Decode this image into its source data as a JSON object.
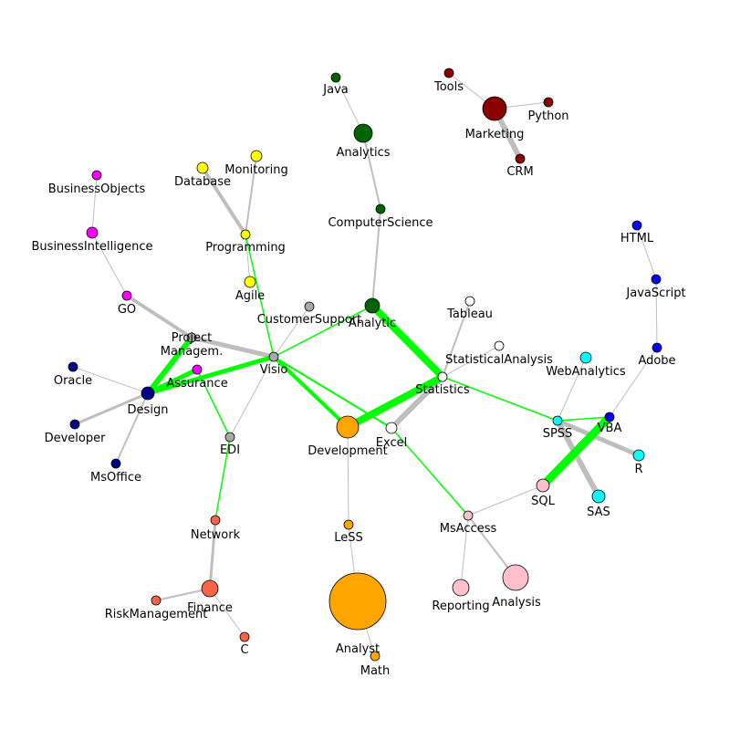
{
  "graph": {
    "colors": {
      "gray_edge": "#bebebe",
      "green_edge": "#00ff00",
      "node_stroke": "#000000"
    },
    "groups": {
      "maroon": "#8b0000",
      "darkgreen": "#006400",
      "yellow": "#ffff00",
      "magenta": "#ff00ff",
      "navy": "#00008b",
      "gray": "#a9a9a9",
      "orange": "#ffa500",
      "white": "#ffffff",
      "pink": "#ffc0cb",
      "cyan": "#00ffff",
      "blue": "#0000ff",
      "tomato": "#ff6347"
    },
    "nodes": [
      {
        "id": "Java",
        "label": "Java",
        "group": "darkgreen",
        "weight": 1
      },
      {
        "id": "Analytics",
        "label": "Analytics",
        "group": "darkgreen",
        "weight": 3
      },
      {
        "id": "ComputerScience",
        "label": "ComputerScience",
        "group": "darkgreen",
        "weight": 1
      },
      {
        "id": "Analytic",
        "label": "Analytic",
        "group": "darkgreen",
        "weight": 2
      },
      {
        "id": "Tools",
        "label": "Tools",
        "group": "maroon",
        "weight": 1
      },
      {
        "id": "Marketing",
        "label": "Marketing",
        "group": "maroon",
        "weight": 6
      },
      {
        "id": "Python",
        "label": "Python",
        "group": "maroon",
        "weight": 1
      },
      {
        "id": "CRM",
        "label": "CRM",
        "group": "maroon",
        "weight": 1
      },
      {
        "id": "Monitoring",
        "label": "Monitoring",
        "group": "yellow",
        "weight": 1.2
      },
      {
        "id": "Database",
        "label": "Database",
        "group": "yellow",
        "weight": 1.2
      },
      {
        "id": "Programming",
        "label": "Programming",
        "group": "yellow",
        "weight": 1
      },
      {
        "id": "Agile",
        "label": "Agile",
        "group": "yellow",
        "weight": 1.2
      },
      {
        "id": "BusinessObjects",
        "label": "BusinessObjects",
        "group": "magenta",
        "weight": 1
      },
      {
        "id": "BusinessIntelligence",
        "label": "BusinessIntelligence",
        "group": "magenta",
        "weight": 1.2
      },
      {
        "id": "GO",
        "label": "GO",
        "group": "magenta",
        "weight": 1
      },
      {
        "id": "Assurance",
        "label": "Assurance",
        "group": "magenta",
        "weight": 1
      },
      {
        "id": "CustomerSupport",
        "label": "CustomerSupport",
        "group": "gray",
        "weight": 1
      },
      {
        "id": "ProjectManagem",
        "label": "Project\nManagem.",
        "group": "gray",
        "weight": 1
      },
      {
        "id": "Visio",
        "label": "Visio",
        "group": "gray",
        "weight": 1
      },
      {
        "id": "EDI",
        "label": "EDI",
        "group": "gray",
        "weight": 1
      },
      {
        "id": "Oracle",
        "label": "Oracle",
        "group": "navy",
        "weight": 1
      },
      {
        "id": "Design",
        "label": "Design",
        "group": "navy",
        "weight": 2
      },
      {
        "id": "Developer",
        "label": "Developer",
        "group": "navy",
        "weight": 1
      },
      {
        "id": "MsOffice",
        "label": "MsOffice",
        "group": "navy",
        "weight": 1
      },
      {
        "id": "Tableau",
        "label": "Tableau",
        "group": "white",
        "weight": 1
      },
      {
        "id": "StatisticalAnalysis",
        "label": "StatisticalAnalysis",
        "group": "white",
        "weight": 1
      },
      {
        "id": "Statistics",
        "label": "Statistics",
        "group": "white",
        "weight": 1
      },
      {
        "id": "Excel",
        "label": "Excel",
        "group": "white",
        "weight": 1.5
      },
      {
        "id": "Development",
        "label": "Development",
        "group": "orange",
        "weight": 5
      },
      {
        "id": "LeSS",
        "label": "LeSS",
        "group": "orange",
        "weight": 1
      },
      {
        "id": "Analyst",
        "label": "Analyst",
        "group": "orange",
        "weight": 100
      },
      {
        "id": "Math",
        "label": "Math",
        "group": "orange",
        "weight": 1
      },
      {
        "id": "WebAnalytics",
        "label": "WebAnalytics",
        "group": "cyan",
        "weight": 1.2
      },
      {
        "id": "SPSS",
        "label": "SPSS",
        "group": "cyan",
        "weight": 1
      },
      {
        "id": "R",
        "label": "R",
        "group": "cyan",
        "weight": 1.2
      },
      {
        "id": "SAS",
        "label": "SAS",
        "group": "cyan",
        "weight": 2
      },
      {
        "id": "HTML",
        "label": "HTML",
        "group": "blue",
        "weight": 1
      },
      {
        "id": "JavaScript",
        "label": "JavaScript",
        "group": "blue",
        "weight": 1
      },
      {
        "id": "Adobe",
        "label": "Adobe",
        "group": "blue",
        "weight": 1
      },
      {
        "id": "VBA",
        "label": "VBA",
        "group": "blue",
        "weight": 1
      },
      {
        "id": "SQL",
        "label": "SQL",
        "group": "pink",
        "weight": 2
      },
      {
        "id": "MsAccess",
        "label": "MsAccess",
        "group": "pink",
        "weight": 1
      },
      {
        "id": "Reporting",
        "label": "Reporting",
        "group": "pink",
        "weight": 3
      },
      {
        "id": "Analysis",
        "label": "Analysis",
        "group": "pink",
        "weight": 7
      },
      {
        "id": "Network",
        "label": "Network",
        "group": "tomato",
        "weight": 1
      },
      {
        "id": "Finance",
        "label": "Finance",
        "group": "tomato",
        "weight": 3
      },
      {
        "id": "RiskManagement",
        "label": "RiskManagement",
        "group": "tomato",
        "weight": 1
      },
      {
        "id": "C",
        "label": "C",
        "group": "tomato",
        "weight": 1
      }
    ],
    "edges": [
      {
        "source": "Java",
        "target": "Analytics",
        "type": "gray",
        "weight": 1
      },
      {
        "source": "Analytics",
        "target": "ComputerScience",
        "type": "gray",
        "weight": 2
      },
      {
        "source": "ComputerScience",
        "target": "Analytic",
        "type": "gray",
        "weight": 2
      },
      {
        "source": "Tools",
        "target": "Marketing",
        "type": "gray",
        "weight": 1
      },
      {
        "source": "Marketing",
        "target": "Python",
        "type": "gray",
        "weight": 1
      },
      {
        "source": "Marketing",
        "target": "CRM",
        "type": "gray",
        "weight": 6
      },
      {
        "source": "Monitoring",
        "target": "Programming",
        "type": "gray",
        "weight": 2
      },
      {
        "source": "Database",
        "target": "Programming",
        "type": "gray",
        "weight": 4
      },
      {
        "source": "Programming",
        "target": "Agile",
        "type": "gray",
        "weight": 1
      },
      {
        "source": "BusinessObjects",
        "target": "BusinessIntelligence",
        "type": "gray",
        "weight": 1
      },
      {
        "source": "BusinessIntelligence",
        "target": "GO",
        "type": "gray",
        "weight": 1
      },
      {
        "source": "GO",
        "target": "ProjectManagem",
        "type": "gray",
        "weight": 4
      },
      {
        "source": "ProjectManagem",
        "target": "Visio",
        "type": "gray",
        "weight": 5
      },
      {
        "source": "CustomerSupport",
        "target": "Visio",
        "type": "gray",
        "weight": 1
      },
      {
        "source": "Visio",
        "target": "EDI",
        "type": "gray",
        "weight": 1
      },
      {
        "source": "Oracle",
        "target": "Design",
        "type": "gray",
        "weight": 1
      },
      {
        "source": "Design",
        "target": "Developer",
        "type": "gray",
        "weight": 3
      },
      {
        "source": "Design",
        "target": "MsOffice",
        "type": "gray",
        "weight": 2
      },
      {
        "source": "Tableau",
        "target": "Statistics",
        "type": "gray",
        "weight": 2
      },
      {
        "source": "StatisticalAnalysis",
        "target": "Statistics",
        "type": "gray",
        "weight": 1
      },
      {
        "source": "Statistics",
        "target": "Excel",
        "type": "gray",
        "weight": 6
      },
      {
        "source": "Development",
        "target": "LeSS",
        "type": "gray",
        "weight": 1
      },
      {
        "source": "LeSS",
        "target": "Analyst",
        "type": "gray",
        "weight": 1
      },
      {
        "source": "Analyst",
        "target": "Math",
        "type": "gray",
        "weight": 1
      },
      {
        "source": "WebAnalytics",
        "target": "SPSS",
        "type": "gray",
        "weight": 1
      },
      {
        "source": "SPSS",
        "target": "R",
        "type": "gray",
        "weight": 5
      },
      {
        "source": "SPSS",
        "target": "SAS",
        "type": "gray",
        "weight": 6
      },
      {
        "source": "HTML",
        "target": "JavaScript",
        "type": "gray",
        "weight": 1
      },
      {
        "source": "JavaScript",
        "target": "Adobe",
        "type": "gray",
        "weight": 1
      },
      {
        "source": "Adobe",
        "target": "VBA",
        "type": "gray",
        "weight": 1
      },
      {
        "source": "SQL",
        "target": "MsAccess",
        "type": "gray",
        "weight": 1
      },
      {
        "source": "MsAccess",
        "target": "Reporting",
        "type": "gray",
        "weight": 1
      },
      {
        "source": "MsAccess",
        "target": "Analysis",
        "type": "gray",
        "weight": 2
      },
      {
        "source": "Network",
        "target": "Finance",
        "type": "gray",
        "weight": 3
      },
      {
        "source": "Finance",
        "target": "RiskManagement",
        "type": "gray",
        "weight": 2
      },
      {
        "source": "Finance",
        "target": "C",
        "type": "gray",
        "weight": 1
      },
      {
        "source": "Programming",
        "target": "Visio",
        "type": "green",
        "weight": 1.5
      },
      {
        "source": "Visio",
        "target": "Analytic",
        "type": "green",
        "weight": 1.5
      },
      {
        "source": "Visio",
        "target": "Development",
        "type": "green",
        "weight": 4
      },
      {
        "source": "Visio",
        "target": "Excel",
        "type": "green",
        "weight": 2
      },
      {
        "source": "Visio",
        "target": "Design",
        "type": "green",
        "weight": 5
      },
      {
        "source": "ProjectManagem",
        "target": "Design",
        "type": "green",
        "weight": 6
      },
      {
        "source": "Design",
        "target": "Assurance",
        "type": "green",
        "weight": 5
      },
      {
        "source": "Assurance",
        "target": "EDI",
        "type": "green",
        "weight": 1.5
      },
      {
        "source": "EDI",
        "target": "Network",
        "type": "green",
        "weight": 1.5
      },
      {
        "source": "Analytic",
        "target": "Statistics",
        "type": "green",
        "weight": 8
      },
      {
        "source": "Statistics",
        "target": "Development",
        "type": "green",
        "weight": 8
      },
      {
        "source": "Statistics",
        "target": "SPSS",
        "type": "green",
        "weight": 1.5
      },
      {
        "source": "Excel",
        "target": "MsAccess",
        "type": "green",
        "weight": 1.5
      },
      {
        "source": "SPSS",
        "target": "VBA",
        "type": "green",
        "weight": 1.5
      },
      {
        "source": "VBA",
        "target": "SQL",
        "type": "green",
        "weight": 9
      }
    ]
  }
}
